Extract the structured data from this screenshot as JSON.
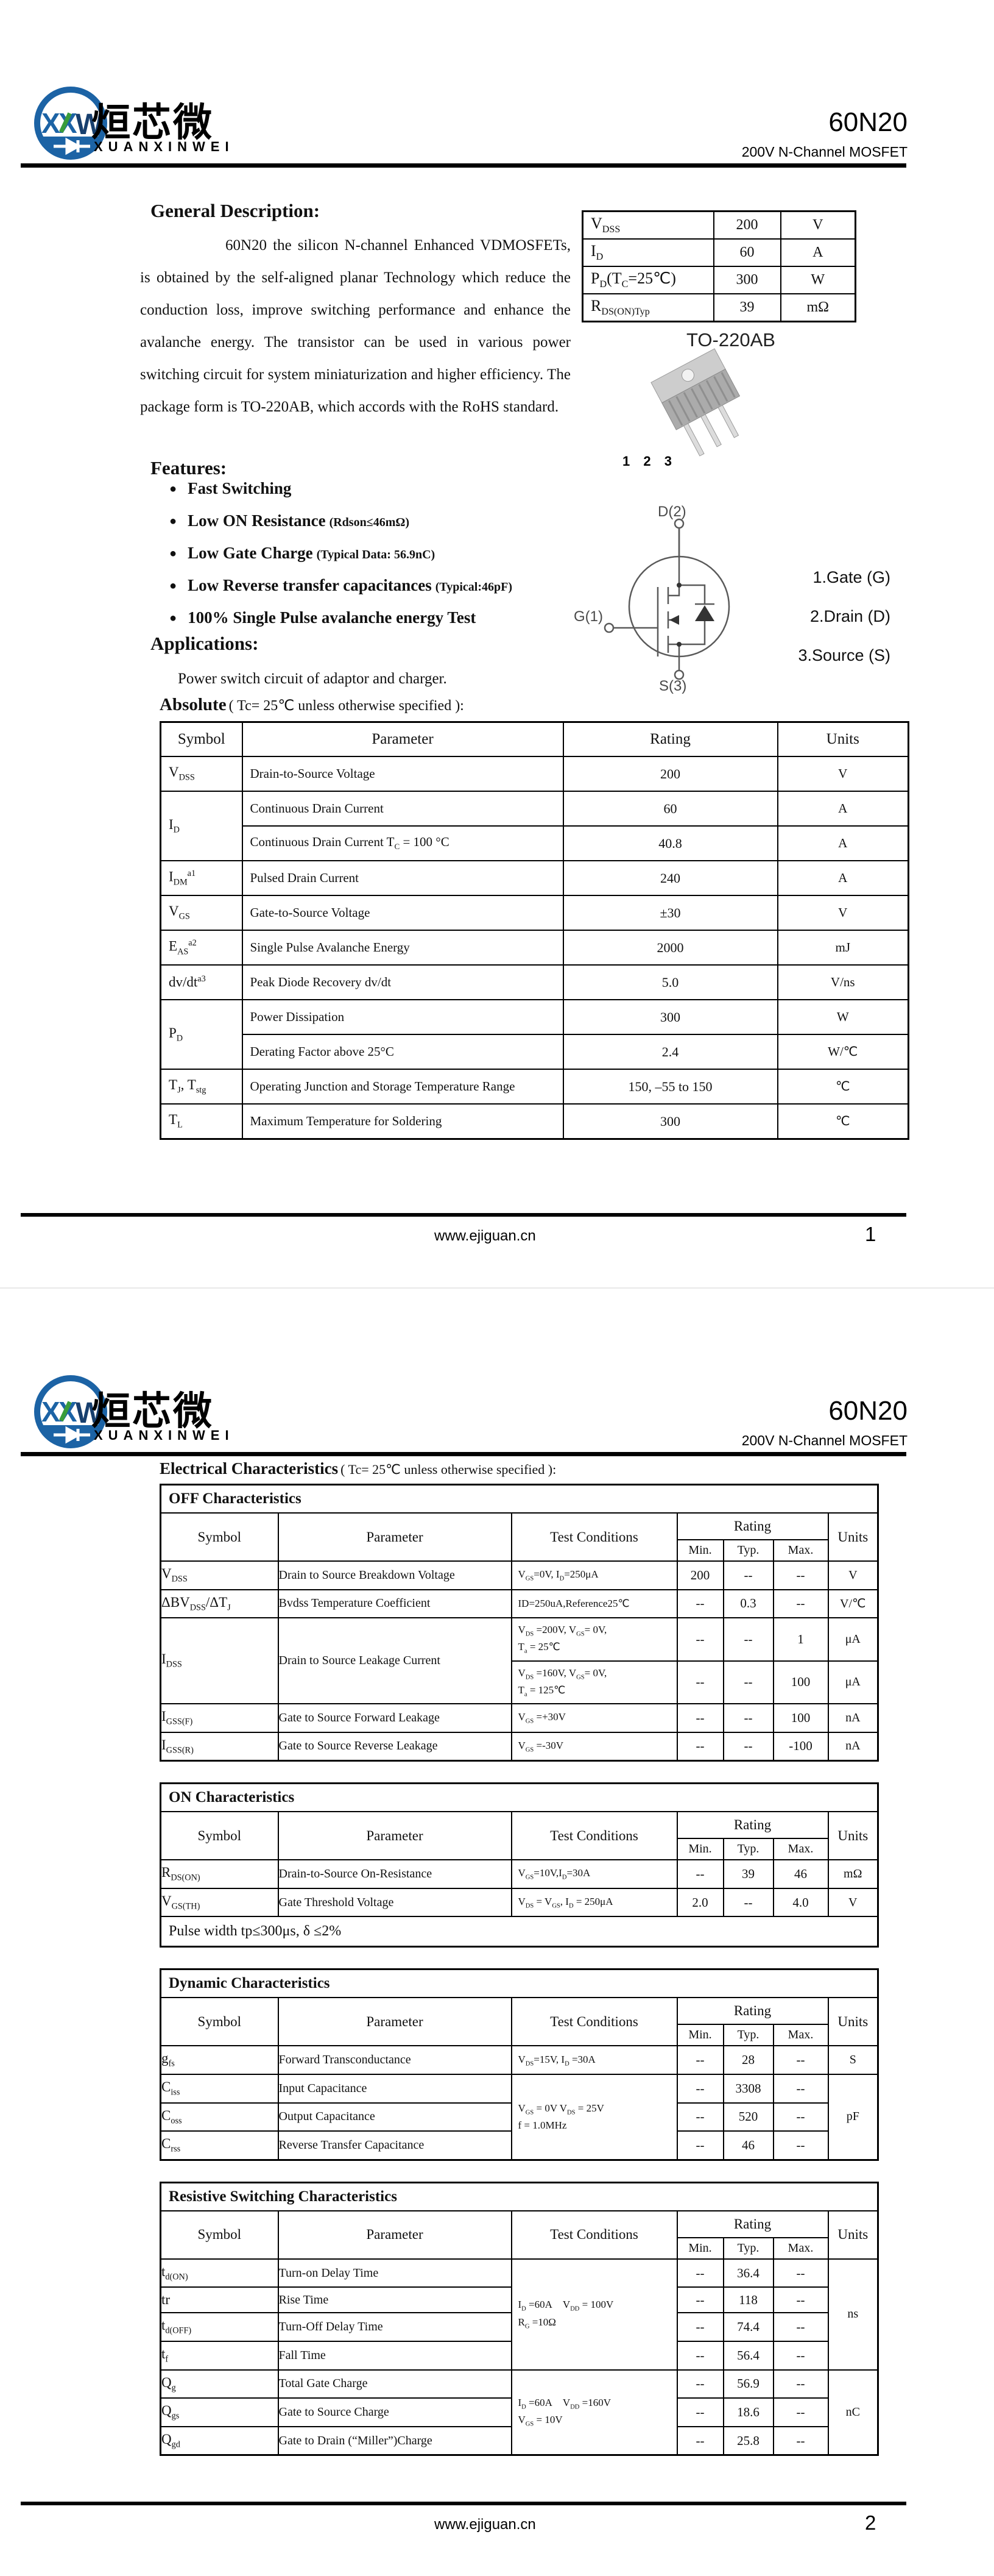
{
  "brand": {
    "cn": "烜芯微",
    "en": "XUANXINWEI",
    "part": "60N20",
    "subtitle": "200V N-Channel MOSFET"
  },
  "footer": {
    "url": "www.ejiguan.cn",
    "page1": "1",
    "page2": "2"
  },
  "page1": {
    "general": {
      "title": "General Description:",
      "body": "60N20 the silicon N-channel Enhanced VDMOSFETs, is obtained by the self-aligned planar Technology which reduce the conduction loss, improve switching performance and enhance the avalanche energy. The transistor can be used in various power switching circuit for system miniaturization and higher efficiency. The package form is TO-220AB, which accords with the RoHS standard."
    },
    "quickspec": {
      "rows": [
        [
          "V~DSS~",
          "200",
          "V"
        ],
        [
          "I~D~",
          "60",
          "A"
        ],
        [
          "P~D~(T~C~=25℃)",
          "300",
          "W"
        ],
        [
          "R~DS(ON)Typ~",
          "39",
          "mΩ"
        ]
      ]
    },
    "package": {
      "name": "TO-220AB",
      "pins": "1 2 3",
      "d_label": "D(2)",
      "g_label": "G(1)",
      "s_label": "S(3)",
      "legend": [
        "1.Gate (G)",
        "2.Drain (D)",
        "3.Source (S)"
      ]
    },
    "features": {
      "title": "Features:",
      "bullet": "●",
      "items": [
        {
          "b": "Fast Switching",
          "s": ""
        },
        {
          "b": "Low ON Resistance",
          "s": "(Rdson≤46mΩ)"
        },
        {
          "b": "Low Gate Charge",
          "s": "(Typical Data: 56.9nC)"
        },
        {
          "b": "Low Reverse transfer capacitances",
          "s": "(Typical:46pF)"
        },
        {
          "b": "100% Single Pulse avalanche energy Test",
          "s": ""
        }
      ]
    },
    "applications": {
      "title": "Applications:",
      "body": "Power switch circuit of adaptor and charger."
    },
    "absolute": {
      "title_b": "Absolute",
      "title_r": "( Tc= 25℃  unless otherwise specified ):",
      "headers": [
        "Symbol",
        "Parameter",
        "Rating",
        "Units"
      ],
      "rows": [
        [
          {
            "k": "sym",
            "t": "V~DSS~"
          },
          {
            "k": "param",
            "t": "Drain-to-Source Voltage"
          },
          {
            "k": "val",
            "t": "200"
          },
          {
            "k": "unit",
            "t": "V"
          }
        ],
        [
          {
            "k": "sym",
            "t": "I~D~",
            "rs": 2
          },
          {
            "k": "param",
            "t": "Continuous Drain Current"
          },
          {
            "k": "val",
            "t": "60"
          },
          {
            "k": "unit",
            "t": "A"
          }
        ],
        [
          {
            "k": "param",
            "t": "Continuous Drain Current T~C~ = 100 °C"
          },
          {
            "k": "val",
            "t": "40.8"
          },
          {
            "k": "unit",
            "t": "A"
          }
        ],
        [
          {
            "k": "sym",
            "t": "I~DM~^a1^"
          },
          {
            "k": "param",
            "t": "Pulsed Drain Current"
          },
          {
            "k": "val",
            "t": "240"
          },
          {
            "k": "unit",
            "t": "A"
          }
        ],
        [
          {
            "k": "sym",
            "t": "V~GS~"
          },
          {
            "k": "param",
            "t": "Gate-to-Source Voltage"
          },
          {
            "k": "val",
            "t": "±30"
          },
          {
            "k": "unit",
            "t": "V"
          }
        ],
        [
          {
            "k": "sym",
            "t": "E~AS~^a2^"
          },
          {
            "k": "param",
            "t": "Single Pulse Avalanche Energy"
          },
          {
            "k": "val",
            "t": "2000"
          },
          {
            "k": "unit",
            "t": "mJ"
          }
        ],
        [
          {
            "k": "sym",
            "t": "dv/dt^a3^"
          },
          {
            "k": "param",
            "t": "Peak Diode Recovery dv/dt"
          },
          {
            "k": "val",
            "t": "5.0"
          },
          {
            "k": "unit",
            "t": "V/ns"
          }
        ],
        [
          {
            "k": "sym",
            "t": "P~D~",
            "rs": 2
          },
          {
            "k": "param",
            "t": "Power Dissipation"
          },
          {
            "k": "val",
            "t": "300"
          },
          {
            "k": "unit",
            "t": "W"
          }
        ],
        [
          {
            "k": "param",
            "t": "Derating Factor above 25°C"
          },
          {
            "k": "val",
            "t": "2.4"
          },
          {
            "k": "unit",
            "t": "W/℃"
          }
        ],
        [
          {
            "k": "sym",
            "t": "T~J~, T~stg~"
          },
          {
            "k": "param",
            "t": "Operating Junction and Storage Temperature Range"
          },
          {
            "k": "val",
            "t": "150, –55 to 150"
          },
          {
            "k": "unit",
            "t": "℃"
          }
        ],
        [
          {
            "k": "sym",
            "t": "T~L~"
          },
          {
            "k": "param",
            "t": "Maximum Temperature for Soldering"
          },
          {
            "k": "val",
            "t": "300"
          },
          {
            "k": "unit",
            "t": "℃"
          }
        ]
      ]
    }
  },
  "page2": {
    "elec_b": "Electrical Characteristics",
    "elec_r": "( Tc= 25℃  unless otherwise specified ):",
    "char_header": {
      "symbol": "Symbol",
      "parameter": "Parameter",
      "conditions": "Test Conditions",
      "rating": "Rating",
      "sub": [
        "Min.",
        "Typ.",
        "Max."
      ],
      "units": "Units"
    },
    "tables": [
      {
        "title": "OFF Characteristics",
        "rows": [
          [
            {
              "k": "sym",
              "t": "V~DSS~"
            },
            {
              "k": "param",
              "t": "Drain to Source Breakdown Voltage"
            },
            {
              "k": "cond",
              "t": "V~GS~=0V, I~D~=250μA"
            },
            {
              "k": "val",
              "t": "200"
            },
            {
              "k": "val",
              "t": "--"
            },
            {
              "k": "val",
              "t": "--"
            },
            {
              "k": "unit",
              "t": "V"
            }
          ],
          [
            {
              "k": "sym",
              "t": "ΔBV~DSS~/ΔT~J~"
            },
            {
              "k": "param",
              "t": "Bvdss Temperature Coefficient"
            },
            {
              "k": "cond",
              "t": "ID=250uA,Reference25℃"
            },
            {
              "k": "val",
              "t": "--"
            },
            {
              "k": "val",
              "t": "0.3"
            },
            {
              "k": "val",
              "t": "--"
            },
            {
              "k": "unit",
              "t": "V/℃"
            }
          ],
          [
            {
              "k": "sym",
              "t": "I~DSS~",
              "rs": 2
            },
            {
              "k": "param",
              "t": "Drain to Source Leakage Current",
              "rs": 2
            },
            {
              "k": "cond",
              "t": "V~DS~ =200V, V~GS~= 0V,\nT~a~ = 25℃"
            },
            {
              "k": "val",
              "t": "--"
            },
            {
              "k": "val",
              "t": "--"
            },
            {
              "k": "val",
              "t": "1"
            },
            {
              "k": "unit",
              "t": "μA"
            }
          ],
          [
            {
              "k": "cond",
              "t": "V~DS~ =160V, V~GS~= 0V,\nT~a~ = 125℃"
            },
            {
              "k": "val",
              "t": "--"
            },
            {
              "k": "val",
              "t": "--"
            },
            {
              "k": "val",
              "t": "100"
            },
            {
              "k": "unit",
              "t": "μA"
            }
          ],
          [
            {
              "k": "sym",
              "t": "I~GSS(F)~"
            },
            {
              "k": "param",
              "t": "Gate to Source Forward Leakage"
            },
            {
              "k": "cond",
              "t": "V~GS~ =+30V"
            },
            {
              "k": "val",
              "t": "--"
            },
            {
              "k": "val",
              "t": "--"
            },
            {
              "k": "val",
              "t": "100"
            },
            {
              "k": "unit",
              "t": "nA"
            }
          ],
          [
            {
              "k": "sym",
              "t": "I~GSS(R)~"
            },
            {
              "k": "param",
              "t": "Gate to Source Reverse Leakage"
            },
            {
              "k": "cond",
              "t": "V~GS~ =-30V"
            },
            {
              "k": "val",
              "t": "--"
            },
            {
              "k": "val",
              "t": "--"
            },
            {
              "k": "val",
              "t": "-100"
            },
            {
              "k": "unit",
              "t": "nA"
            }
          ]
        ]
      },
      {
        "title": "ON Characteristics",
        "rows": [
          [
            {
              "k": "sym",
              "t": "R~DS(ON)~"
            },
            {
              "k": "param",
              "t": "Drain-to-Source On-Resistance"
            },
            {
              "k": "cond",
              "t": "V~GS~=10V,I~D~=30A"
            },
            {
              "k": "val",
              "t": "--"
            },
            {
              "k": "val",
              "t": "39"
            },
            {
              "k": "val",
              "t": "46"
            },
            {
              "k": "unit",
              "t": "mΩ"
            }
          ],
          [
            {
              "k": "sym",
              "t": "V~GS(TH)~"
            },
            {
              "k": "param",
              "t": "Gate Threshold Voltage"
            },
            {
              "k": "cond",
              "t": "V~DS~ = V~GS~, I~D~ = 250μA"
            },
            {
              "k": "val",
              "t": "2.0"
            },
            {
              "k": "val",
              "t": "--"
            },
            {
              "k": "val",
              "t": "4.0"
            },
            {
              "k": "unit",
              "t": "V"
            }
          ]
        ],
        "note": "Pulse width tp≤300μs, δ ≤2%"
      },
      {
        "title": "Dynamic Characteristics",
        "rows": [
          [
            {
              "k": "sym",
              "t": "g~fs~"
            },
            {
              "k": "param",
              "t": "Forward Transconductance"
            },
            {
              "k": "cond",
              "t": "V~DS~=15V, I~D~ =30A"
            },
            {
              "k": "val",
              "t": "--"
            },
            {
              "k": "val",
              "t": "28"
            },
            {
              "k": "val",
              "t": "--"
            },
            {
              "k": "unit",
              "t": "S"
            }
          ],
          [
            {
              "k": "sym",
              "t": "C~iss~"
            },
            {
              "k": "param",
              "t": "Input Capacitance"
            },
            {
              "k": "cond",
              "t": "V~GS~ = 0V V~DS~ = 25V\nf = 1.0MHz",
              "rs": 3
            },
            {
              "k": "val",
              "t": "--"
            },
            {
              "k": "val",
              "t": "3308"
            },
            {
              "k": "val",
              "t": "--"
            },
            {
              "k": "unit",
              "t": "pF",
              "rs": 3
            }
          ],
          [
            {
              "k": "sym",
              "t": "C~oss~"
            },
            {
              "k": "param",
              "t": "Output Capacitance"
            },
            {
              "k": "val",
              "t": "--"
            },
            {
              "k": "val",
              "t": "520"
            },
            {
              "k": "val",
              "t": "--"
            }
          ],
          [
            {
              "k": "sym",
              "t": "C~rss~"
            },
            {
              "k": "param",
              "t": "Reverse Transfer Capacitance"
            },
            {
              "k": "val",
              "t": "--"
            },
            {
              "k": "val",
              "t": "46"
            },
            {
              "k": "val",
              "t": "--"
            }
          ]
        ]
      },
      {
        "title": "Resistive Switching Characteristics",
        "rows": [
          [
            {
              "k": "sym",
              "t": "t~d(ON)~"
            },
            {
              "k": "param",
              "t": "Turn-on Delay Time"
            },
            {
              "k": "cond",
              "t": "I~D~ =60A V~DD~ = 100V\nR~G~ =10Ω",
              "rs": 4
            },
            {
              "k": "val",
              "t": "--"
            },
            {
              "k": "val",
              "t": "36.4"
            },
            {
              "k": "val",
              "t": "--"
            },
            {
              "k": "unit",
              "t": "ns",
              "rs": 4
            }
          ],
          [
            {
              "k": "sym",
              "t": "tr"
            },
            {
              "k": "param",
              "t": "Rise Time"
            },
            {
              "k": "val",
              "t": "--"
            },
            {
              "k": "val",
              "t": "118"
            },
            {
              "k": "val",
              "t": "--"
            }
          ],
          [
            {
              "k": "sym",
              "t": "t~d(OFF)~"
            },
            {
              "k": "param",
              "t": "Turn-Off Delay Time"
            },
            {
              "k": "val",
              "t": "--"
            },
            {
              "k": "val",
              "t": "74.4"
            },
            {
              "k": "val",
              "t": "--"
            }
          ],
          [
            {
              "k": "sym",
              "t": "t~f~"
            },
            {
              "k": "param",
              "t": "Fall Time"
            },
            {
              "k": "val",
              "t": "--"
            },
            {
              "k": "val",
              "t": "56.4"
            },
            {
              "k": "val",
              "t": "--"
            }
          ],
          [
            {
              "k": "sym",
              "t": "Q~g~"
            },
            {
              "k": "param",
              "t": "Total Gate Charge"
            },
            {
              "k": "cond",
              "t": "I~D~ =60A V~DD~ =160V\nV~GS~ = 10V",
              "rs": 3
            },
            {
              "k": "val",
              "t": "--"
            },
            {
              "k": "val",
              "t": "56.9"
            },
            {
              "k": "val",
              "t": "--"
            },
            {
              "k": "unit",
              "t": "nC",
              "rs": 3
            }
          ],
          [
            {
              "k": "sym",
              "t": "Q~gs~"
            },
            {
              "k": "param",
              "t": "Gate to Source Charge"
            },
            {
              "k": "val",
              "t": "--"
            },
            {
              "k": "val",
              "t": "18.6"
            },
            {
              "k": "val",
              "t": "--"
            }
          ],
          [
            {
              "k": "sym",
              "t": "Q~gd~"
            },
            {
              "k": "param",
              "t": "Gate to Drain (“Miller”)Charge"
            },
            {
              "k": "val",
              "t": "--"
            },
            {
              "k": "val",
              "t": "25.8"
            },
            {
              "k": "val",
              "t": "--"
            }
          ]
        ]
      }
    ]
  }
}
